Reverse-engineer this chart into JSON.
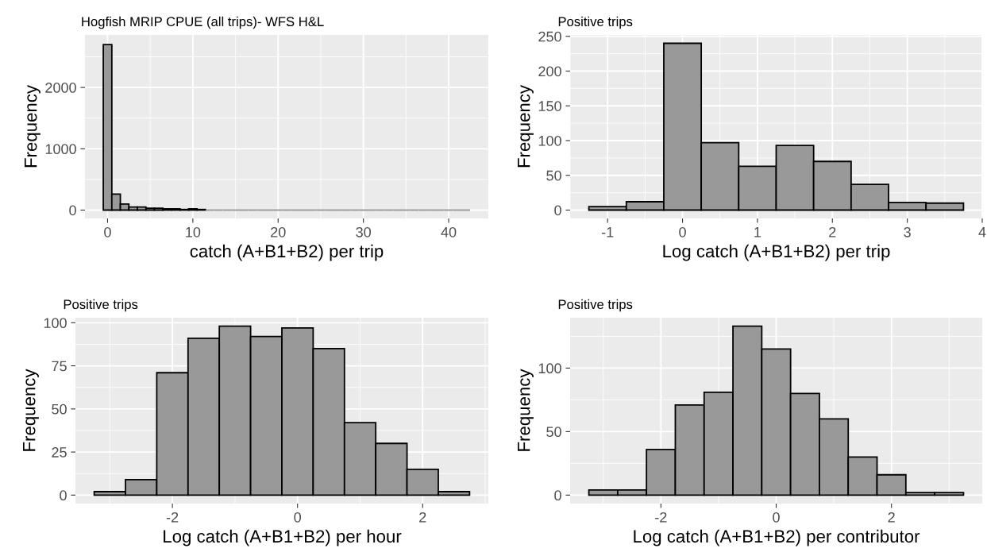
{
  "chart_data": [
    {
      "type": "histogram",
      "title": "Hogfish MRIP CPUE (all trips)- WFS H&L",
      "xlabel": "catch (A+B1+B2) per trip",
      "ylabel": "Frequency",
      "color": "#999999",
      "bins": [
        -0.5,
        0.5,
        1.5,
        2.5,
        3.5,
        4.5,
        5.5,
        6.5,
        7.5,
        8.5,
        9.5,
        10.5,
        11.5,
        12.5,
        13.5,
        14.5,
        15.5,
        16.5,
        17.5,
        18.5,
        19.5,
        20.5,
        21.5,
        22.5,
        23.5,
        24.5,
        25.5,
        26.5,
        27.5,
        28.5,
        29.5,
        30.5,
        31.5,
        32.5,
        33.5,
        34.5,
        35.5,
        36.5,
        37.5,
        38.5,
        39.5,
        40.5,
        41.5,
        42.5
      ],
      "values": [
        2700,
        260,
        100,
        50,
        50,
        30,
        30,
        20,
        20,
        10,
        20,
        10,
        0,
        0,
        0,
        0,
        0,
        0,
        0,
        0,
        0,
        0,
        0,
        0,
        0,
        0,
        0,
        0,
        0,
        0,
        0,
        0,
        0,
        0,
        0,
        0,
        0,
        0,
        0,
        0,
        0,
        0,
        0
      ],
      "xlim": [
        -2.65,
        44.65
      ],
      "xticks": [
        0,
        10,
        20,
        30,
        40
      ],
      "ylim": [
        -136,
        2856
      ],
      "yticks": [
        0,
        1000,
        2000
      ],
      "grid": true
    },
    {
      "type": "histogram",
      "title": "Positive trips",
      "xlabel": "Log catch (A+B1+B2) per trip",
      "ylabel": "Frequency",
      "color": "#999999",
      "bins": [
        -1.25,
        -0.75,
        -0.25,
        0.25,
        0.75,
        1.25,
        1.75,
        2.25,
        2.75,
        3.25,
        3.75
      ],
      "values": [
        5,
        12,
        240,
        97,
        63,
        93,
        70,
        37,
        11,
        10
      ],
      "xlim": [
        -1.5,
        4.0
      ],
      "xticks": [
        -1,
        0,
        1,
        2,
        3,
        4
      ],
      "ylim": [
        -12,
        252
      ],
      "yticks": [
        0,
        50,
        100,
        150,
        200,
        250
      ],
      "grid": true
    },
    {
      "type": "histogram",
      "title": "Positive trips",
      "xlabel": "Log catch (A+B1+B2) per hour",
      "ylabel": "Frequency",
      "color": "#999999",
      "bins": [
        -3.25,
        -2.75,
        -2.25,
        -1.75,
        -1.25,
        -0.75,
        -0.25,
        0.25,
        0.75,
        1.25,
        1.75,
        2.25,
        2.75
      ],
      "values": [
        2,
        9,
        71,
        91,
        98,
        92,
        97,
        85,
        42,
        30,
        15,
        2
      ],
      "xlim": [
        -3.55,
        3.05
      ],
      "xticks": [
        -2,
        0,
        2
      ],
      "ylim": [
        -4.9,
        102.9
      ],
      "yticks": [
        0,
        25,
        50,
        75,
        100
      ],
      "grid": true
    },
    {
      "type": "histogram",
      "title": "Positive trips",
      "xlabel": "Log catch (A+B1+B2) per contributor",
      "ylabel": "Frequency",
      "color": "#999999",
      "bins": [
        -3.25,
        -2.75,
        -2.25,
        -1.75,
        -1.25,
        -0.75,
        -0.25,
        0.25,
        0.75,
        1.25,
        1.75,
        2.25,
        2.75,
        3.25
      ],
      "values": [
        4,
        4,
        36,
        71,
        81,
        133,
        115,
        80,
        60,
        30,
        16,
        2,
        2
      ],
      "xlim": [
        -3.575,
        3.575
      ],
      "xticks": [
        -2,
        0,
        2
      ],
      "ylim": [
        -6.65,
        139.65
      ],
      "yticks": [
        0,
        50,
        100
      ],
      "grid": true
    }
  ]
}
